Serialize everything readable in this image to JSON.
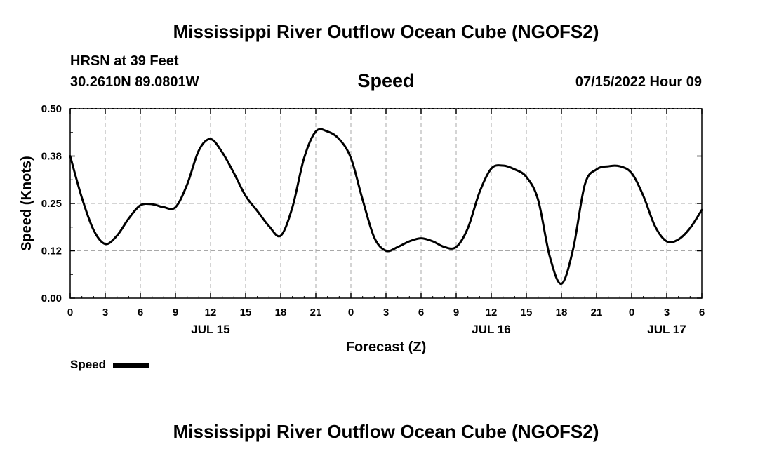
{
  "header": {
    "title": "Mississippi River Outflow Ocean Cube (NGOFS2)",
    "station": "HRSN at 39 Feet",
    "coordinates": "30.2610N  89.0801W",
    "variable": "Speed",
    "datetime": "07/15/2022 Hour 09"
  },
  "legend": {
    "label": "Speed"
  },
  "footer": {
    "title": "Mississippi River Outflow Ocean Cube (NGOFS2)"
  },
  "chart_data": {
    "type": "line",
    "title": "Speed",
    "xlabel": "Forecast (Z)",
    "ylabel": "Speed (Knots)",
    "xlim": [
      0,
      54
    ],
    "ylim": [
      0,
      0.5
    ],
    "grid": true,
    "legend_position": "bottom-left",
    "x_ticks": [
      {
        "x": 0,
        "label": "0"
      },
      {
        "x": 3,
        "label": "3"
      },
      {
        "x": 6,
        "label": "6"
      },
      {
        "x": 9,
        "label": "9"
      },
      {
        "x": 12,
        "label": "12"
      },
      {
        "x": 15,
        "label": "15"
      },
      {
        "x": 18,
        "label": "18"
      },
      {
        "x": 21,
        "label": "21"
      },
      {
        "x": 24,
        "label": "0"
      },
      {
        "x": 27,
        "label": "3"
      },
      {
        "x": 30,
        "label": "6"
      },
      {
        "x": 33,
        "label": "9"
      },
      {
        "x": 36,
        "label": "12"
      },
      {
        "x": 39,
        "label": "15"
      },
      {
        "x": 42,
        "label": "18"
      },
      {
        "x": 45,
        "label": "21"
      },
      {
        "x": 48,
        "label": "0"
      },
      {
        "x": 51,
        "label": "3"
      },
      {
        "x": 54,
        "label": "6"
      }
    ],
    "day_labels": [
      {
        "x": 12,
        "label": "JUL 15"
      },
      {
        "x": 36,
        "label": "JUL 16"
      },
      {
        "x": 51,
        "label": "JUL 17"
      }
    ],
    "y_ticks": [
      {
        "y": 0.0,
        "label": "0.00"
      },
      {
        "y": 0.125,
        "label": "0.12"
      },
      {
        "y": 0.25,
        "label": "0.25"
      },
      {
        "y": 0.375,
        "label": "0.38"
      },
      {
        "y": 0.5,
        "label": "0.50"
      }
    ],
    "series": [
      {
        "name": "Speed",
        "color": "#000000",
        "x": [
          0,
          1,
          2,
          3,
          4,
          5,
          6,
          7,
          8,
          9,
          10,
          11,
          12,
          13,
          14,
          15,
          16,
          17,
          18,
          19,
          20,
          21,
          22,
          23,
          24,
          25,
          26,
          27,
          28,
          29,
          30,
          31,
          32,
          33,
          34,
          35,
          36,
          37,
          38,
          39,
          40,
          41,
          42,
          43,
          44,
          45,
          46,
          47,
          48,
          49,
          50,
          51,
          52,
          53,
          54
        ],
        "y": [
          0.375,
          0.265,
          0.18,
          0.143,
          0.165,
          0.21,
          0.245,
          0.248,
          0.24,
          0.24,
          0.3,
          0.39,
          0.42,
          0.385,
          0.33,
          0.27,
          0.23,
          0.19,
          0.165,
          0.24,
          0.37,
          0.44,
          0.44,
          0.42,
          0.37,
          0.26,
          0.16,
          0.125,
          0.135,
          0.15,
          0.158,
          0.15,
          0.135,
          0.135,
          0.185,
          0.28,
          0.342,
          0.35,
          0.34,
          0.32,
          0.26,
          0.11,
          0.038,
          0.13,
          0.3,
          0.34,
          0.348,
          0.348,
          0.33,
          0.27,
          0.19,
          0.15,
          0.155,
          0.185,
          0.233
        ]
      }
    ]
  }
}
